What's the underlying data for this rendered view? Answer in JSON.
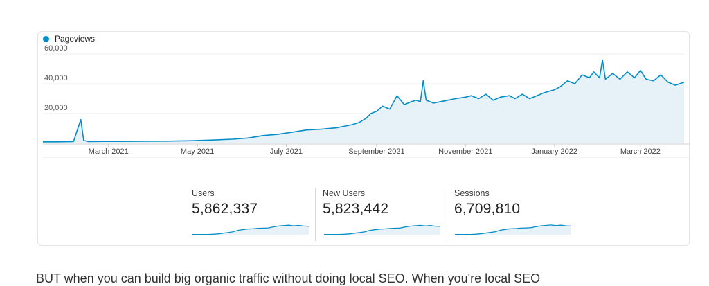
{
  "chart_data": {
    "type": "area",
    "legend": "Pageviews",
    "series_color": "#058dc7",
    "fill_color": "#e6f1f8",
    "ylim": [
      0,
      60000
    ],
    "y_ticks": [
      20000,
      40000,
      60000
    ],
    "y_tick_labels": [
      "20,000",
      "40,000",
      "60,000"
    ],
    "x_tick_labels": [
      "March 2021",
      "May 2021",
      "July 2021",
      "September 2021",
      "November 2021",
      "January 2022",
      "March 2022"
    ],
    "x_tick_dates": [
      "2021-03-01",
      "2021-05-01",
      "2021-07-01",
      "2021-09-01",
      "2021-11-01",
      "2022-01-01",
      "2022-03-01"
    ],
    "x_range": [
      "2021-01-15",
      "2022-03-31"
    ],
    "series": [
      {
        "name": "Pageviews",
        "x": [
          "2021-01-15",
          "2021-01-25",
          "2021-02-05",
          "2021-02-10",
          "2021-02-12",
          "2021-02-15",
          "2021-02-25",
          "2021-03-10",
          "2021-03-25",
          "2021-04-10",
          "2021-04-25",
          "2021-05-10",
          "2021-05-25",
          "2021-06-05",
          "2021-06-15",
          "2021-06-25",
          "2021-07-05",
          "2021-07-15",
          "2021-07-25",
          "2021-08-05",
          "2021-08-15",
          "2021-08-20",
          "2021-08-25",
          "2021-08-28",
          "2021-09-01",
          "2021-09-05",
          "2021-09-10",
          "2021-09-15",
          "2021-09-20",
          "2021-09-25",
          "2021-09-28",
          "2021-10-01",
          "2021-10-03",
          "2021-10-05",
          "2021-10-10",
          "2021-10-15",
          "2021-10-20",
          "2021-10-25",
          "2021-11-01",
          "2021-11-05",
          "2021-11-10",
          "2021-11-15",
          "2021-11-20",
          "2021-11-25",
          "2021-12-01",
          "2021-12-05",
          "2021-12-10",
          "2021-12-15",
          "2021-12-20",
          "2021-12-25",
          "2022-01-01",
          "2022-01-05",
          "2022-01-10",
          "2022-01-15",
          "2022-01-20",
          "2022-01-25",
          "2022-01-28",
          "2022-02-01",
          "2022-02-03",
          "2022-02-05",
          "2022-02-10",
          "2022-02-15",
          "2022-02-20",
          "2022-02-25",
          "2022-03-01",
          "2022-03-05",
          "2022-03-10",
          "2022-03-15",
          "2022-03-20",
          "2022-03-25",
          "2022-03-31"
        ],
        "y": [
          1000,
          1000,
          1200,
          16000,
          2000,
          1200,
          1300,
          1300,
          1400,
          1500,
          1700,
          2200,
          2800,
          3600,
          5200,
          6000,
          7500,
          9000,
          9500,
          10500,
          12500,
          14000,
          17000,
          20000,
          21500,
          25000,
          23000,
          32000,
          26000,
          28000,
          29000,
          28000,
          42000,
          29000,
          27000,
          28000,
          29000,
          30000,
          31000,
          32000,
          30000,
          33000,
          29000,
          31000,
          32000,
          30000,
          33000,
          30000,
          32000,
          34000,
          36000,
          38000,
          42000,
          40000,
          46000,
          44000,
          48000,
          44000,
          56000,
          43000,
          47000,
          43000,
          48000,
          44000,
          49000,
          43000,
          42000,
          46000,
          41000,
          39000,
          41000
        ]
      }
    ]
  },
  "metrics": [
    {
      "label": "Users",
      "value": "5,862,337",
      "spark": [
        1000,
        1000,
        1200,
        1500,
        2200,
        4000,
        7500,
        10500,
        14000,
        21500,
        25000,
        28000,
        29000,
        31000,
        32000,
        33000,
        38000,
        42000,
        44000,
        46000,
        43000,
        45000,
        42000,
        41000
      ]
    },
    {
      "label": "New Users",
      "value": "5,823,442",
      "spark": [
        1000,
        1000,
        1200,
        1500,
        2200,
        4000,
        7400,
        10400,
        13800,
        21000,
        24500,
        27500,
        28500,
        30500,
        31500,
        32500,
        37500,
        41500,
        43500,
        45500,
        42500,
        44500,
        41500,
        40500
      ]
    },
    {
      "label": "Sessions",
      "value": "6,709,810",
      "spark": [
        1000,
        1000,
        1200,
        1500,
        2300,
        4200,
        7800,
        11000,
        14500,
        22000,
        26000,
        29000,
        30000,
        32000,
        33000,
        34000,
        39000,
        43000,
        45000,
        47000,
        44000,
        46000,
        43000,
        42000
      ]
    }
  ],
  "bottom_text": "BUT when you can build big organic traffic without doing local SEO. When you're local SEO"
}
